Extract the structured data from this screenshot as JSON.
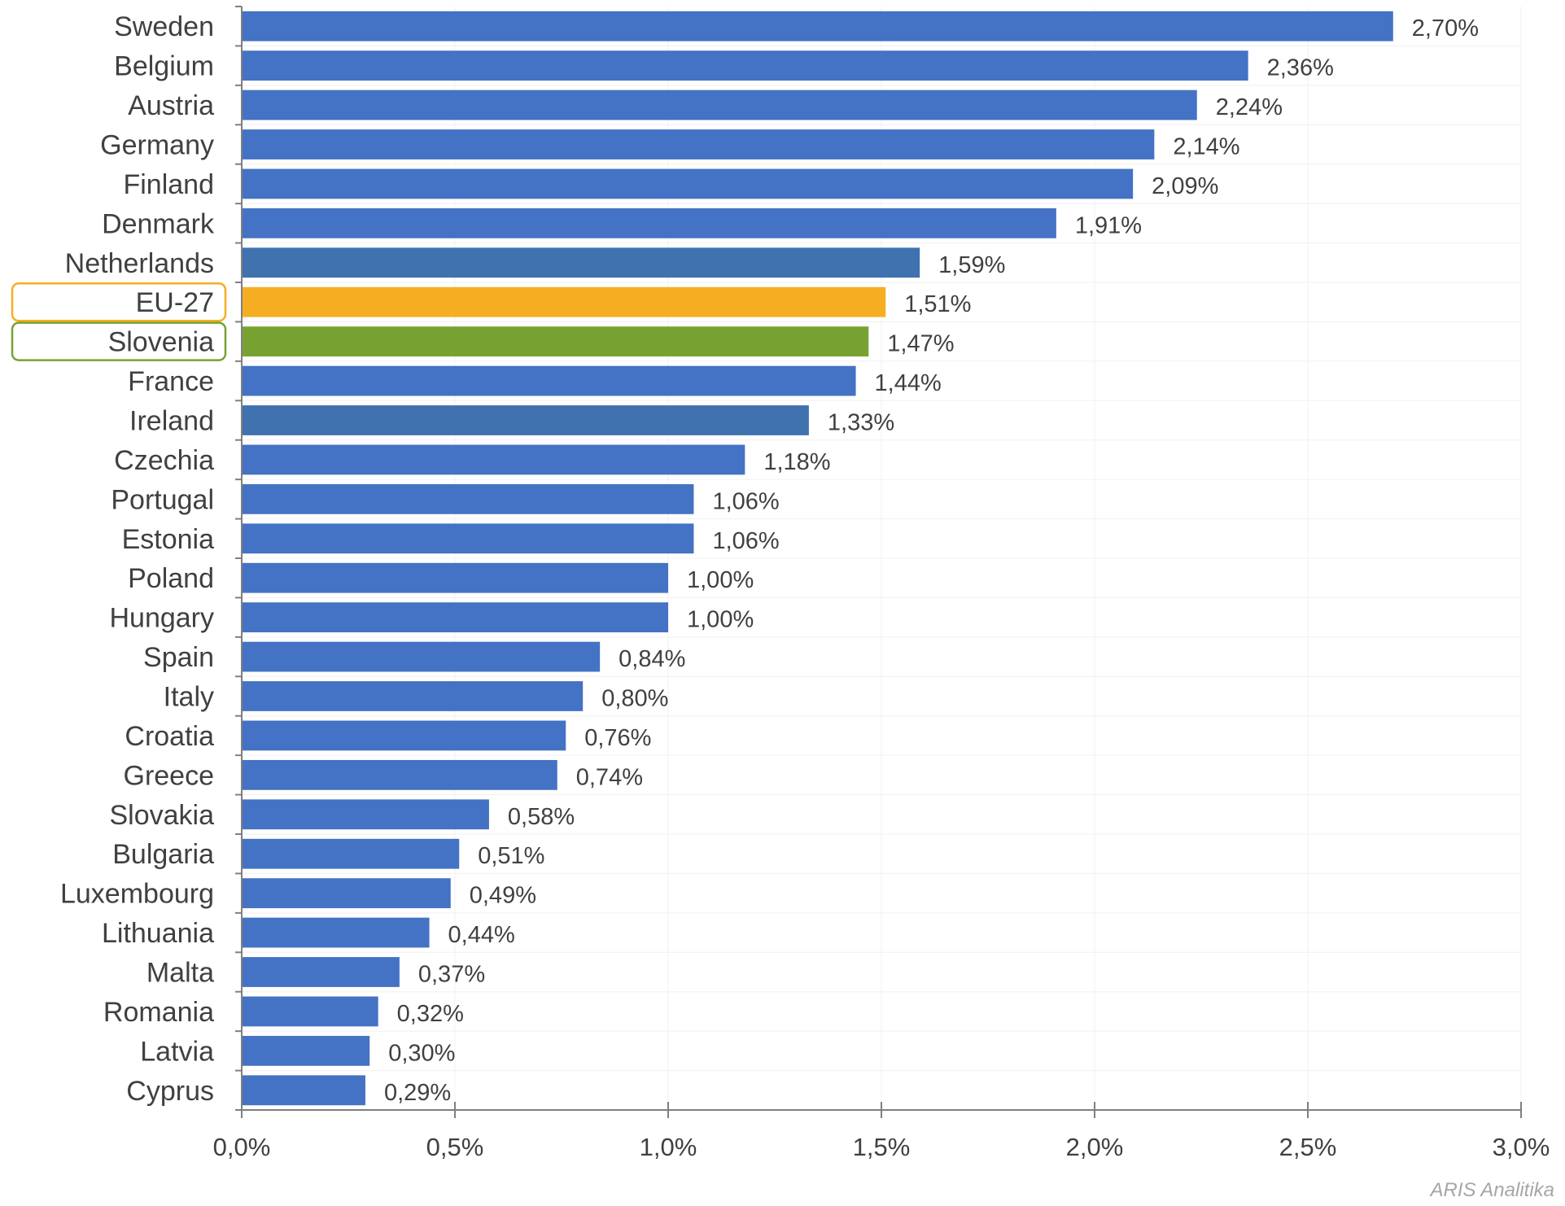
{
  "chart_data": {
    "type": "bar",
    "orientation": "horizontal",
    "title": "",
    "xlabel": "",
    "ylabel": "",
    "xlim": [
      0,
      3.0
    ],
    "grid": true,
    "categories": [
      "Sweden",
      "Belgium",
      "Austria",
      "Germany",
      "Finland",
      "Denmark",
      "Netherlands",
      "EU-27",
      "Slovenia",
      "France",
      "Ireland",
      "Czechia",
      "Portugal",
      "Estonia",
      "Poland",
      "Hungary",
      "Spain",
      "Italy",
      "Croatia",
      "Greece",
      "Slovakia",
      "Bulgaria",
      "Luxembourg",
      "Lithuania",
      "Malta",
      "Romania",
      "Latvia",
      "Cyprus"
    ],
    "values": [
      2.7,
      2.36,
      2.24,
      2.14,
      2.09,
      1.91,
      1.59,
      1.51,
      1.47,
      1.44,
      1.33,
      1.18,
      1.06,
      1.06,
      1.0,
      1.0,
      0.84,
      0.8,
      0.76,
      0.74,
      0.58,
      0.51,
      0.49,
      0.44,
      0.37,
      0.32,
      0.3,
      0.29
    ],
    "value_labels": [
      "2,70%",
      "2,36%",
      "2,24%",
      "2,14%",
      "2,09%",
      "1,91%",
      "1,59%",
      "1,51%",
      "1,47%",
      "1,44%",
      "1,33%",
      "1,18%",
      "1,06%",
      "1,06%",
      "1,00%",
      "1,00%",
      "0,84%",
      "0,80%",
      "0,76%",
      "0,74%",
      "0,58%",
      "0,51%",
      "0,49%",
      "0,44%",
      "0,37%",
      "0,32%",
      "0,30%",
      "0,29%"
    ],
    "bar_colors": [
      "#4472c4",
      "#4472c4",
      "#4472c4",
      "#4472c4",
      "#4472c4",
      "#4472c4",
      "#3f72af",
      "#f5ae22",
      "#77a232",
      "#4472c4",
      "#3f72af",
      "#4472c4",
      "#4472c4",
      "#4472c4",
      "#4472c4",
      "#4472c4",
      "#4472c4",
      "#4472c4",
      "#4472c4",
      "#4472c4",
      "#4472c4",
      "#4472c4",
      "#4472c4",
      "#4472c4",
      "#4472c4",
      "#4472c4",
      "#4472c4",
      "#4472c4"
    ],
    "highlight_boxes": [
      {
        "category": "EU-27",
        "color": "#f5ae22"
      },
      {
        "category": "Slovenia",
        "color": "#77a232"
      }
    ],
    "x_ticks": [
      0,
      0.5,
      1.0,
      1.5,
      2.0,
      2.5,
      3.0
    ],
    "x_tick_labels": [
      "0,0%",
      "0,5%",
      "1,0%",
      "1,5%",
      "2,0%",
      "2,5%",
      "3,0%"
    ]
  },
  "credit": "ARIS Analitika"
}
